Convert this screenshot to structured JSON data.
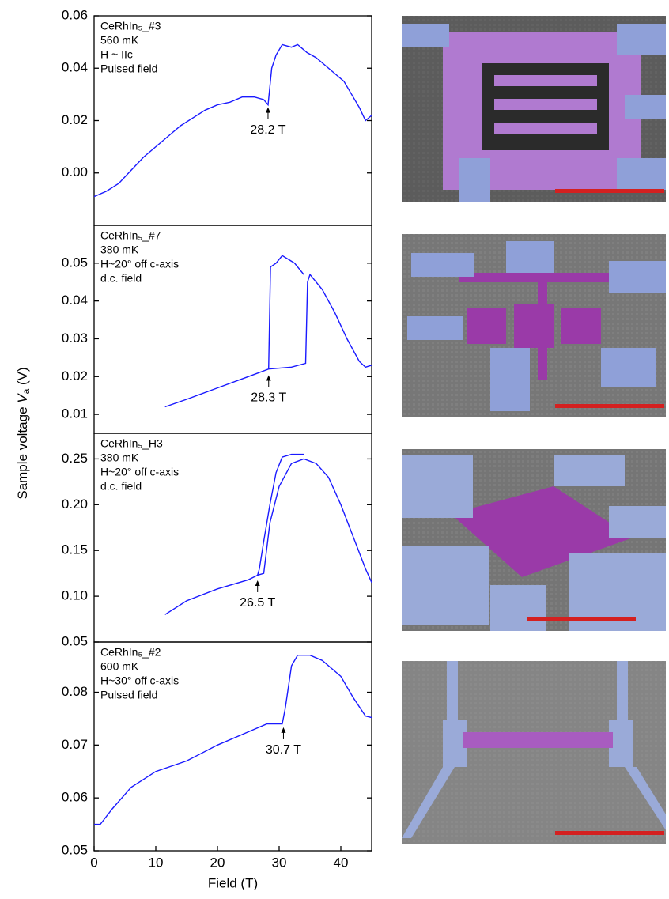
{
  "shared": {
    "ylabel": {
      "text": "Sample voltage ",
      "var": "V",
      "sub": "a",
      "unit": " (V)"
    }
  },
  "chart_data": [
    {
      "type": "line",
      "notes": [
        "CeRhIn₅_#3",
        "560 mK",
        "H ~ IIc",
        "Pulsed field"
      ],
      "xlim": [
        0,
        45
      ],
      "ylim": [
        -0.02,
        0.06
      ],
      "yticks": [
        {
          "value": 0,
          "label": "0.00"
        },
        0.02,
        0.04,
        0.06
      ],
      "series": [
        {
          "color": "#1a1aff",
          "x": [
            0,
            2,
            4,
            6,
            8,
            10,
            12,
            14,
            16,
            18,
            20,
            22,
            24,
            26,
            27.5,
            28.2,
            28.8,
            29.5,
            30.5,
            32,
            33,
            34.5,
            36,
            37.5,
            39,
            40.5,
            42,
            43,
            44,
            45
          ],
          "values": [
            -0.009,
            -0.007,
            -0.004,
            0.001,
            0.006,
            0.01,
            0.014,
            0.018,
            0.021,
            0.024,
            0.026,
            0.027,
            0.029,
            0.029,
            0.028,
            0.026,
            0.04,
            0.045,
            0.049,
            0.048,
            0.049,
            0.046,
            0.044,
            0.041,
            0.038,
            0.035,
            0.029,
            0.025,
            0.02,
            0.022
          ]
        }
      ],
      "annotations": [
        {
          "label": "28.2 T",
          "x": 28.2,
          "y": 0.026
        }
      ]
    },
    {
      "type": "line",
      "notes": [
        "CeRhIn₅_#7",
        "380 mK",
        "H~20° off c-axis",
        "d.c. field"
      ],
      "xlim": [
        0,
        45
      ],
      "ylim": [
        0.005,
        0.06
      ],
      "yticks": [
        0.01,
        0.02,
        0.03,
        0.04,
        0.05
      ],
      "series": [
        {
          "color": "#1a1aff",
          "x": [
            11.5,
            15,
            20,
            25,
            28.3,
            32,
            34.3,
            34.6,
            35,
            37,
            39,
            41,
            43,
            44,
            45
          ],
          "values": [
            0.012,
            0.014,
            0.017,
            0.02,
            0.022,
            0.0225,
            0.0235,
            0.045,
            0.047,
            0.043,
            0.037,
            0.03,
            0.024,
            0.0225,
            0.023
          ]
        },
        {
          "color": "#1a1aff",
          "x": [
            34,
            32.5,
            31.5,
            30.5,
            29.5,
            28.6,
            28.3
          ],
          "values": [
            0.047,
            0.05,
            0.051,
            0.052,
            0.05,
            0.049,
            0.022
          ]
        }
      ],
      "annotations": [
        {
          "label": "28.3 T",
          "x": 28.3,
          "y": 0.021
        }
      ]
    },
    {
      "type": "line",
      "notes": [
        "CeRhIn₅_H3",
        "380 mK",
        "H~20° off c-axis",
        "d.c. field"
      ],
      "xlim": [
        0,
        45
      ],
      "ylim": [
        0.05,
        0.278
      ],
      "yticks": [
        0.05,
        {
          "value": 0.1,
          "label": "0.10"
        },
        0.15,
        {
          "value": 0.2,
          "label": "0.20"
        },
        0.25
      ],
      "series": [
        {
          "color": "#1a1aff",
          "x": [
            11.5,
            15,
            20,
            25,
            26.5,
            27.5,
            28.5,
            30,
            32,
            34,
            36,
            38,
            40,
            42,
            44,
            45
          ],
          "values": [
            0.08,
            0.095,
            0.108,
            0.118,
            0.123,
            0.125,
            0.18,
            0.22,
            0.245,
            0.25,
            0.245,
            0.23,
            0.2,
            0.165,
            0.13,
            0.115
          ]
        },
        {
          "color": "#1a1aff",
          "x": [
            34,
            32,
            30.5,
            29.5,
            28.5,
            27.5,
            26.8,
            26.5
          ],
          "values": [
            0.255,
            0.255,
            0.252,
            0.235,
            0.2,
            0.16,
            0.13,
            0.123
          ]
        }
      ],
      "annotations": [
        {
          "label": "26.5 T",
          "x": 26.5,
          "y": 0.12
        }
      ]
    },
    {
      "type": "line",
      "notes": [
        "CeRhIn₅_#2",
        "600 mK",
        "H~30° off c-axis",
        "Pulsed field"
      ],
      "xlim": [
        0,
        45
      ],
      "ylim": [
        0.05,
        0.0895
      ],
      "xticks": [
        0,
        10,
        20,
        30,
        40
      ],
      "xlabel": "Field (T)",
      "yticks": [
        0.05,
        0.06,
        0.07,
        0.08
      ],
      "series": [
        {
          "color": "#1a1aff",
          "x": [
            0,
            1,
            3,
            6,
            10,
            15,
            20,
            25,
            28,
            30.5,
            31,
            32,
            33,
            35,
            37,
            40,
            42,
            44,
            45
          ],
          "values": [
            0.055,
            0.055,
            0.058,
            0.062,
            0.065,
            0.067,
            0.07,
            0.0725,
            0.074,
            0.074,
            0.077,
            0.085,
            0.087,
            0.087,
            0.086,
            0.083,
            0.079,
            0.0755,
            0.0752
          ]
        }
      ],
      "annotations": [
        {
          "label": "30.7 T",
          "x": 30.7,
          "y": 0.0738
        }
      ]
    }
  ]
}
